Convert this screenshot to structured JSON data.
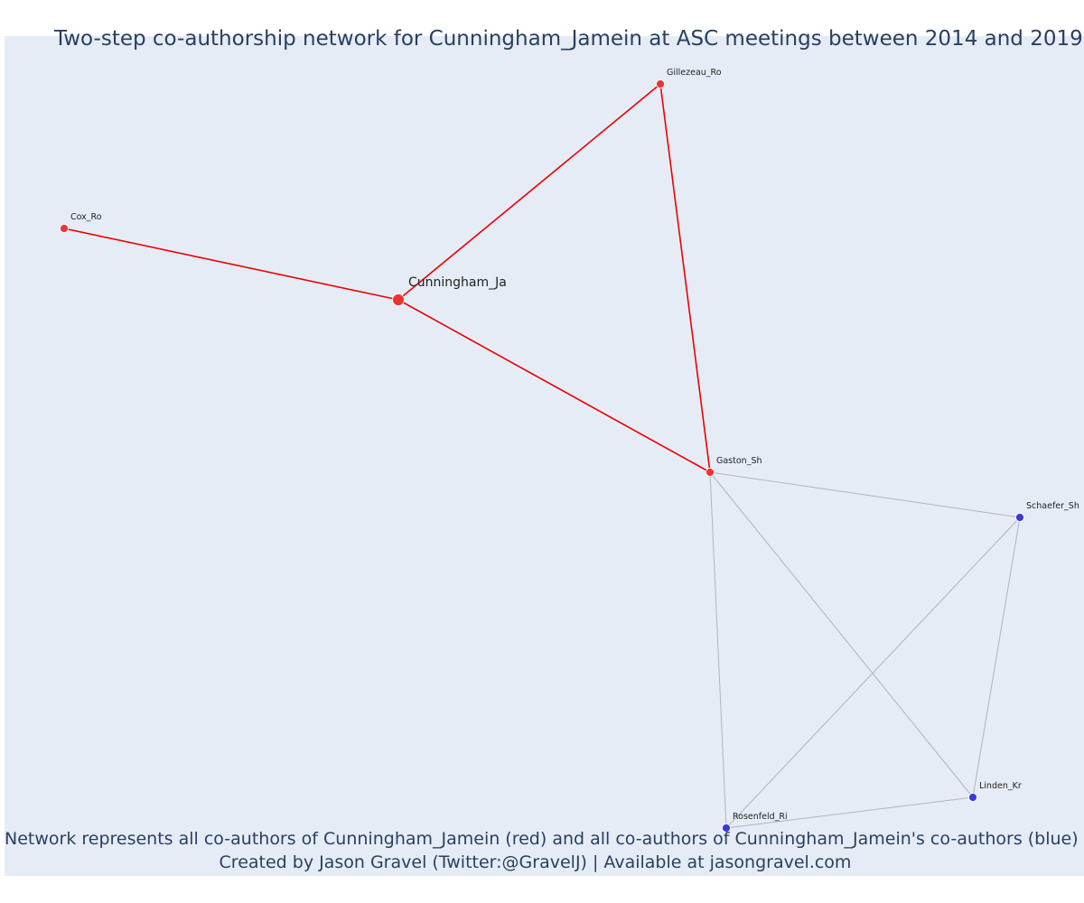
{
  "title": "Two-step co-authorship network for Cunningham_Jamein at ASC meetings between 2014 and 2019",
  "footer": {
    "line1": "Network represents all co-authors of Cunningham_Jamein (red) and all co-authors of Cunningham_Jamein's co-authors (blue)",
    "line2": "Created by Jason Gravel (Twitter:@GravelJ) | Available at jasongravel.com"
  },
  "colors": {
    "plot_background": "#e5ecf6",
    "red_node": "#ee3333",
    "blue_node": "#3a3ad8",
    "red_edge": "#ee0000",
    "gray_edge": "#b0b4c4"
  },
  "chart_data": {
    "type": "network",
    "nodes": [
      {
        "id": "Cunningham_Ja",
        "label": "Cunningham_Ja",
        "group": "red",
        "focal": true
      },
      {
        "id": "Gillezeau_Ro",
        "label": "Gillezeau_Ro",
        "group": "red"
      },
      {
        "id": "Cox_Ro",
        "label": "Cox_Ro",
        "group": "red"
      },
      {
        "id": "Gaston_Sh",
        "label": "Gaston_Sh",
        "group": "red"
      },
      {
        "id": "Schaefer_Sh",
        "label": "Schaefer_Sh",
        "group": "blue"
      },
      {
        "id": "Linden_Kr",
        "label": "Linden_Kr",
        "group": "blue"
      },
      {
        "id": "Rosenfeld_Ri",
        "label": "Rosenfeld_Ri",
        "group": "blue"
      }
    ],
    "edges": [
      {
        "source": "Cunningham_Ja",
        "target": "Gillezeau_Ro",
        "group": "red"
      },
      {
        "source": "Cunningham_Ja",
        "target": "Cox_Ro",
        "group": "red"
      },
      {
        "source": "Cunningham_Ja",
        "target": "Gaston_Sh",
        "group": "red"
      },
      {
        "source": "Gillezeau_Ro",
        "target": "Gaston_Sh",
        "group": "red"
      },
      {
        "source": "Gaston_Sh",
        "target": "Schaefer_Sh",
        "group": "gray"
      },
      {
        "source": "Gaston_Sh",
        "target": "Linden_Kr",
        "group": "gray"
      },
      {
        "source": "Gaston_Sh",
        "target": "Rosenfeld_Ri",
        "group": "gray"
      },
      {
        "source": "Schaefer_Sh",
        "target": "Rosenfeld_Ri",
        "group": "gray"
      },
      {
        "source": "Schaefer_Sh",
        "target": "Linden_Kr",
        "group": "gray"
      },
      {
        "source": "Linden_Kr",
        "target": "Rosenfeld_Ri",
        "group": "gray"
      }
    ]
  }
}
